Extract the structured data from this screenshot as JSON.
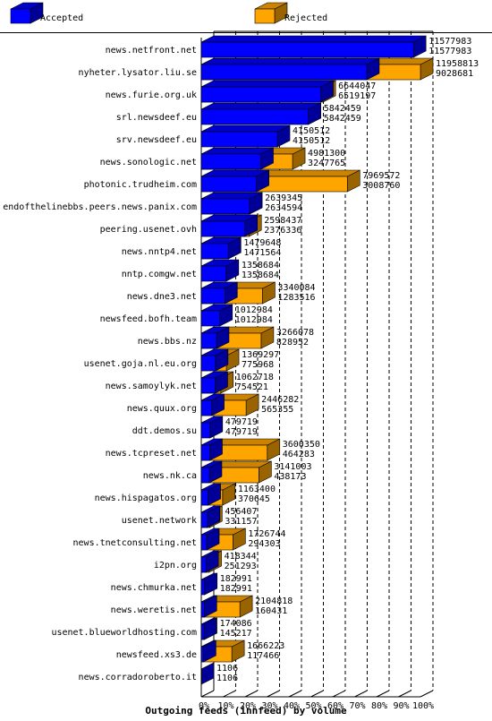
{
  "chart_data": {
    "type": "bar",
    "orientation": "horizontal",
    "stacking": "overlay",
    "title": "Outgoing feeds (innfeed) by volume",
    "legend_position": "top",
    "grid": "vertical-dashed",
    "xlim": [
      0,
      100
    ],
    "x_ticks": [
      "0%",
      "10%",
      "20%",
      "30%",
      "40%",
      "50%",
      "60%",
      "70%",
      "80%",
      "90%",
      "100%"
    ],
    "series": [
      {
        "name": "Accepted",
        "color": "#0000ff"
      },
      {
        "name": "Rejected",
        "color": "#ffa500"
      }
    ],
    "categories": [
      "news.netfront.net",
      "nyheter.lysator.liu.se",
      "news.furie.org.uk",
      "srl.newsdeef.eu",
      "srv.newsdeef.eu",
      "news.sonologic.net",
      "photonic.trudheim.com",
      "endofthelinebbs.peers.news.panix.com",
      "peering.usenet.ovh",
      "news.nntp4.net",
      "nntp.comgw.net",
      "news.dne3.net",
      "newsfeed.bofh.team",
      "news.bbs.nz",
      "usenet.goja.nl.eu.org",
      "news.samoylyk.net",
      "news.quux.org",
      "ddt.demos.su",
      "news.tcpreset.net",
      "news.nk.ca",
      "news.hispagatos.org",
      "usenet.network",
      "news.tnetconsulting.net",
      "i2pn.org",
      "news.chmurka.net",
      "news.weretis.net",
      "usenet.blueworldhosting.com",
      "newsfeed.xs3.de",
      "news.corradoroberto.it"
    ],
    "offered": [
      11577983,
      11958813,
      6644047,
      5842459,
      4150512,
      4981300,
      7969572,
      2639345,
      2598437,
      1479648,
      1358684,
      3340084,
      1012984,
      3266078,
      1369297,
      1062718,
      2446282,
      479719,
      3600350,
      3141003,
      1163400,
      456407,
      1726744,
      418344,
      182991,
      2104818,
      174086,
      1666223,
      1106
    ],
    "accepted": [
      11577983,
      9028681,
      6519197,
      5842459,
      4150512,
      3247765,
      3008760,
      2634594,
      2376336,
      1471564,
      1358684,
      1283516,
      1012984,
      828952,
      775968,
      754521,
      565355,
      479719,
      464283,
      438173,
      370645,
      331157,
      294303,
      251293,
      182991,
      160431,
      145217,
      117466,
      1106
    ]
  }
}
